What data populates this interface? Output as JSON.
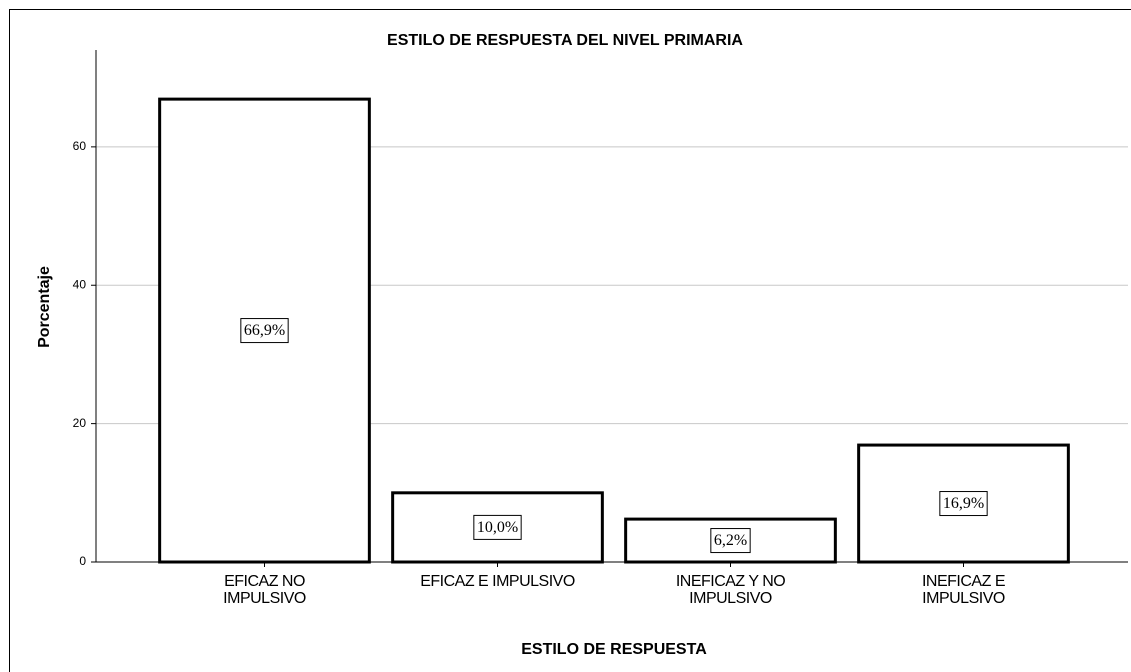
{
  "chart_data": {
    "type": "bar",
    "title": "ESTILO DE RESPUESTA DEL NIVEL PRIMARIA",
    "x_label": "ESTILO DE RESPUESTA",
    "y_label": "Porcentaje",
    "categories": [
      "EFICAZ NO\nIMPULSIVO",
      "EFICAZ E IMPULSIVO",
      "INEFICAZ Y NO\nIMPULSIVO",
      "INEFICAZ E\nIMPULSIVO"
    ],
    "values": [
      66.9,
      10.0,
      6.2,
      16.9
    ],
    "value_labels": [
      "66,9%",
      "10,0%",
      "6,2%",
      "16,9%"
    ],
    "color": "#ffffff",
    "ylim": [
      0,
      74
    ],
    "yticks": [
      0,
      20,
      40,
      60
    ],
    "grid": true
  }
}
